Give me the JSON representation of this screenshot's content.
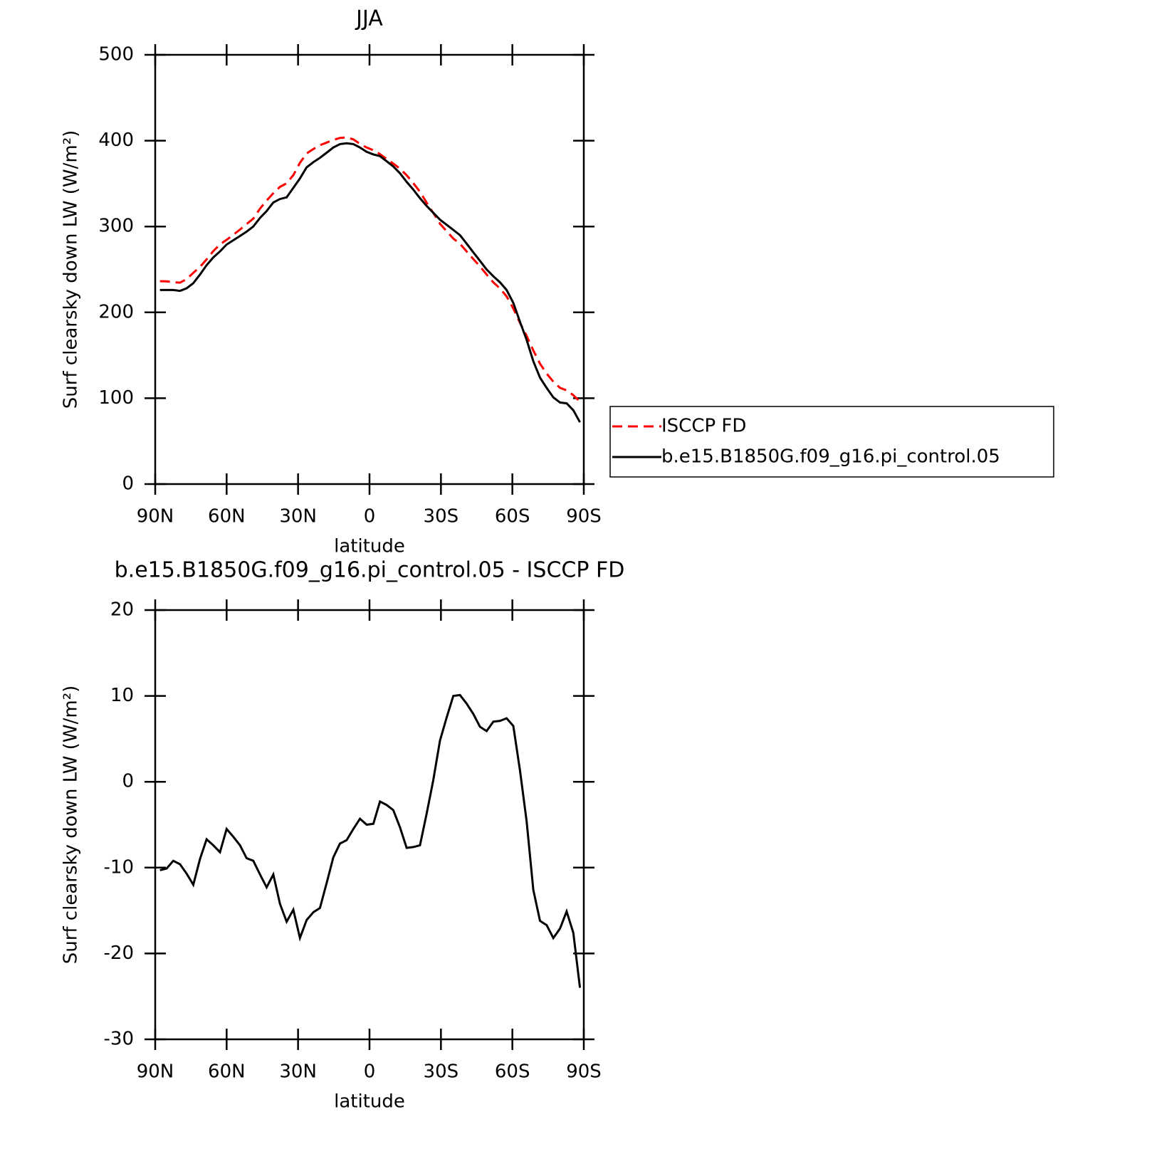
{
  "chart_data": [
    {
      "type": "line",
      "title": "JJA",
      "xlabel": "latitude",
      "ylabel": "Surf clearsky down LW (W/m²)",
      "xlim": [
        90,
        -90
      ],
      "xticks": [
        {
          "value": 90,
          "label": "90N"
        },
        {
          "value": 60,
          "label": "60N"
        },
        {
          "value": 30,
          "label": "30N"
        },
        0,
        {
          "value": -30,
          "label": "30S"
        },
        {
          "value": -60,
          "label": "60S"
        },
        {
          "value": -90,
          "label": "90S"
        }
      ],
      "ylim": [
        0,
        500
      ],
      "yticks": [
        0,
        100,
        200,
        300,
        400,
        500
      ],
      "legend": "right",
      "x": [
        88,
        85.2,
        82.4,
        79.6,
        76.8,
        74,
        71.2,
        68.4,
        65.6,
        62.8,
        60,
        57.2,
        54.4,
        51.6,
        48.8,
        46,
        43.2,
        40.4,
        37.6,
        34.8,
        32,
        29.2,
        26.4,
        23.6,
        20.8,
        18,
        15.2,
        12.4,
        9.6,
        6.8,
        4,
        1.2,
        -1.6,
        -4.4,
        -7.2,
        -10,
        -12.8,
        -15.6,
        -18.4,
        -21.2,
        -24,
        -26.8,
        -29.6,
        -32.4,
        -35.2,
        -38,
        -40.8,
        -43.6,
        -46.4,
        -49.2,
        -52,
        -54.8,
        -57.6,
        -60.4,
        -63.2,
        -66,
        -68.8,
        -71.6,
        -74.4,
        -77.2,
        -80,
        -82.8,
        -85.6,
        -88.4
      ],
      "series": [
        {
          "name": "ISCCP FD",
          "color": "#ff0000",
          "dashed": true,
          "values": [
            236.3,
            236.1,
            235.2,
            234.6,
            238.7,
            246,
            253,
            261.7,
            271.4,
            279.2,
            284.5,
            290.4,
            296.4,
            302.9,
            309.2,
            320.8,
            330.3,
            338.8,
            346.2,
            350.3,
            359.9,
            374.2,
            385.1,
            390.2,
            394.7,
            397.8,
            400.8,
            403.2,
            403.8,
            401.5,
            396.3,
            392,
            388.9,
            384.3,
            378.7,
            373.3,
            367.3,
            359.7,
            350.6,
            340.4,
            327.7,
            315.8,
            303.2,
            294.5,
            286,
            279.9,
            270.9,
            262.1,
            253.6,
            244.1,
            235,
            227.9,
            218.6,
            204.5,
            187.7,
            172.6,
            155.6,
            140.2,
            128.7,
            119.2,
            112.1,
            109.1,
            103.6,
            96
          ]
        },
        {
          "name": "b.e15.B1850G.f09_g16.pi_control.05",
          "color": "#000000",
          "dashed": false,
          "values": [
            226,
            226,
            226,
            225,
            228,
            234,
            244,
            255,
            264,
            271,
            279,
            284,
            289,
            294,
            300,
            310,
            318,
            328,
            332,
            334,
            345,
            356,
            369,
            375,
            380,
            386,
            392,
            396,
            397,
            396,
            392,
            387,
            384,
            382,
            376,
            370,
            362,
            352,
            343,
            333,
            324,
            316,
            308,
            302,
            296,
            290,
            280,
            270,
            260,
            250,
            242,
            235,
            226,
            211,
            189,
            168,
            143,
            124,
            112,
            101,
            95,
            94,
            86,
            72
          ]
        }
      ]
    },
    {
      "type": "line",
      "title": "b.e15.B1850G.f09_g16.pi_control.05 - ISCCP FD",
      "xlabel": "latitude",
      "ylabel": "Surf clearsky down LW (W/m²)",
      "xlim": [
        90,
        -90
      ],
      "xticks": [
        {
          "value": 90,
          "label": "90N"
        },
        {
          "value": 60,
          "label": "60N"
        },
        {
          "value": 30,
          "label": "30N"
        },
        0,
        {
          "value": -30,
          "label": "30S"
        },
        {
          "value": -60,
          "label": "60S"
        },
        {
          "value": -90,
          "label": "90S"
        }
      ],
      "ylim": [
        -30,
        20
      ],
      "yticks": [
        -30,
        -20,
        -10,
        0,
        10,
        20
      ],
      "x": [
        88,
        85.2,
        82.4,
        79.6,
        76.8,
        74,
        71.2,
        68.4,
        65.6,
        62.8,
        60,
        57.2,
        54.4,
        51.6,
        48.8,
        46,
        43.2,
        40.4,
        37.6,
        34.8,
        32,
        29.2,
        26.4,
        23.6,
        20.8,
        18,
        15.2,
        12.4,
        9.6,
        6.8,
        4,
        1.2,
        -1.6,
        -4.4,
        -7.2,
        -10,
        -12.8,
        -15.6,
        -18.4,
        -21.2,
        -24,
        -26.8,
        -29.6,
        -32.4,
        -35.2,
        -38,
        -40.8,
        -43.6,
        -46.4,
        -49.2,
        -52,
        -54.8,
        -57.6,
        -60.4,
        -63.2,
        -66,
        -68.8,
        -71.6,
        -74.4,
        -77.2,
        -80,
        -82.8,
        -85.6,
        -88.4
      ],
      "series": [
        {
          "color": "#000000",
          "dashed": false,
          "values": [
            -10.3,
            -10.1,
            -9.2,
            -9.6,
            -10.7,
            -12,
            -9,
            -6.7,
            -7.4,
            -8.2,
            -5.5,
            -6.4,
            -7.4,
            -8.9,
            -9.2,
            -10.8,
            -12.3,
            -10.8,
            -14.2,
            -16.3,
            -14.9,
            -18.2,
            -16.1,
            -15.2,
            -14.7,
            -11.8,
            -8.8,
            -7.2,
            -6.8,
            -5.5,
            -4.3,
            -5,
            -4.9,
            -2.3,
            -2.7,
            -3.3,
            -5.3,
            -7.7,
            -7.6,
            -7.4,
            -3.7,
            0.2,
            4.8,
            7.5,
            10,
            10.1,
            9.1,
            7.9,
            6.4,
            5.9,
            7,
            7.1,
            7.4,
            6.5,
            1.3,
            -4.6,
            -12.6,
            -16.2,
            -16.7,
            -18.2,
            -17.1,
            -15.1,
            -17.6,
            -24
          ]
        }
      ]
    }
  ]
}
